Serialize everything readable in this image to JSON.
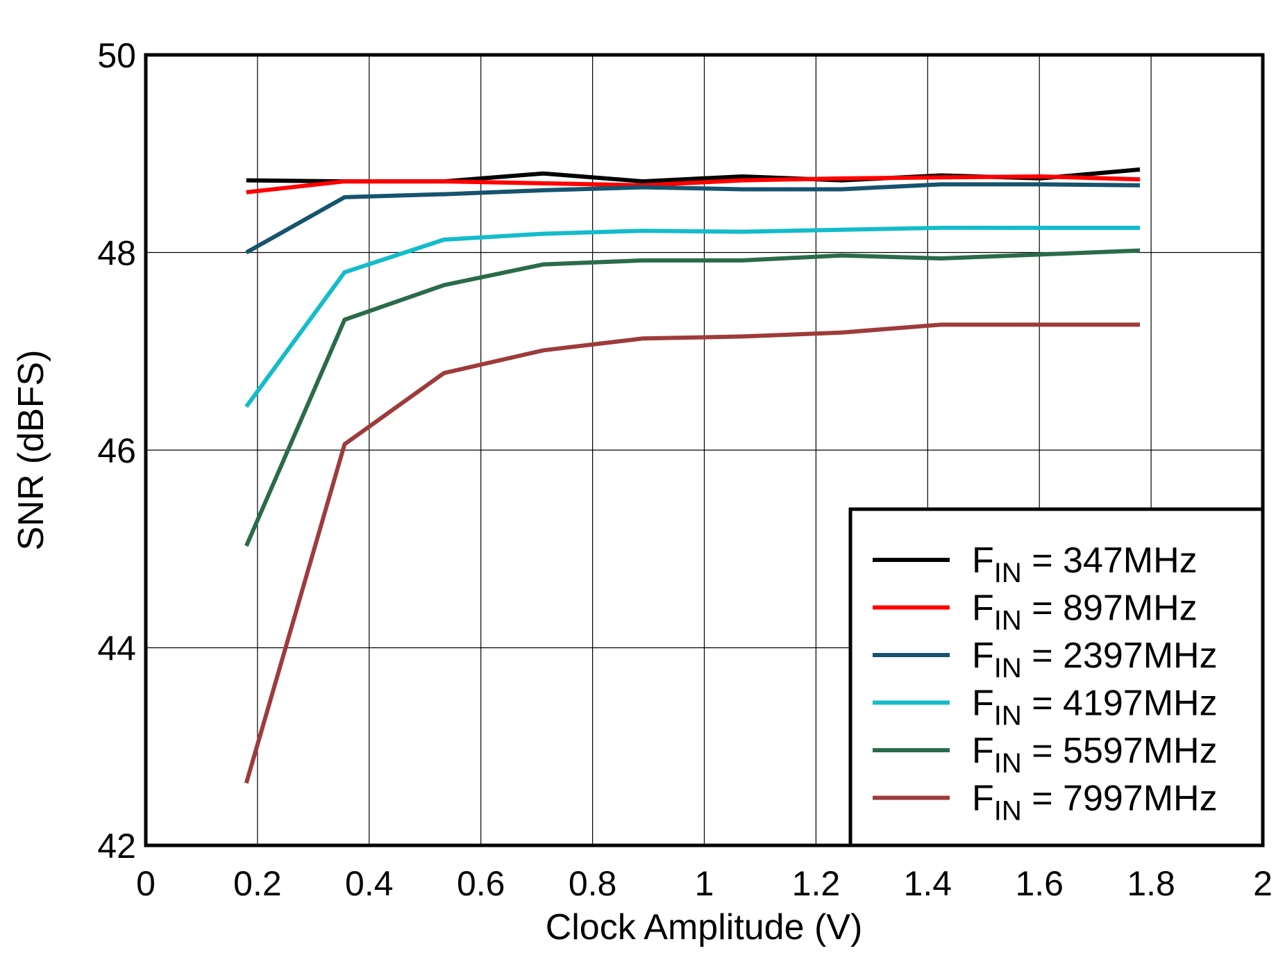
{
  "chart_data": {
    "type": "line",
    "x_label": "Clock Amplitude  (V)",
    "y_label": "SNR  (dBFS)",
    "x": [
      0.18,
      0.356,
      0.534,
      0.712,
      0.89,
      1.068,
      1.246,
      1.424,
      1.602,
      1.78
    ],
    "series": [
      {
        "name": "FIN = 347MHz",
        "color": "#000000",
        "values": [
          48.73,
          48.72,
          48.72,
          48.8,
          48.72,
          48.77,
          48.73,
          48.78,
          48.75,
          48.84
        ]
      },
      {
        "name": "FIN = 897MHz",
        "color": "#ff0000",
        "values": [
          48.61,
          48.72,
          48.72,
          48.7,
          48.68,
          48.73,
          48.75,
          48.76,
          48.77,
          48.74
        ]
      },
      {
        "name": "FIN = 2397MHz",
        "color": "#16536e",
        "values": [
          48.0,
          48.56,
          48.59,
          48.63,
          48.66,
          48.64,
          48.64,
          48.69,
          48.69,
          48.68
        ]
      },
      {
        "name": "FIN = 4197MHz",
        "color": "#13bccb",
        "values": [
          46.44,
          47.8,
          48.13,
          48.19,
          48.22,
          48.21,
          48.23,
          48.25,
          48.25,
          48.25
        ]
      },
      {
        "name": "FIN = 5597MHz",
        "color": "#2a6b4a",
        "values": [
          45.03,
          47.32,
          47.67,
          47.88,
          47.92,
          47.92,
          47.97,
          47.94,
          47.98,
          48.02
        ]
      },
      {
        "name": "FIN = 7997MHz",
        "color": "#9e3b3b",
        "values": [
          42.63,
          46.06,
          46.78,
          47.01,
          47.13,
          47.15,
          47.19,
          47.27,
          47.27,
          47.27
        ]
      }
    ],
    "xlim": [
      0,
      2
    ],
    "xticks": [
      0,
      0.2,
      0.4,
      0.6,
      0.8,
      1,
      1.2,
      1.4,
      1.6,
      1.8,
      2
    ],
    "ylim": [
      42,
      50
    ],
    "yticks": [
      42,
      44,
      46,
      48,
      50
    ],
    "grid": true,
    "legend": "lower right"
  }
}
